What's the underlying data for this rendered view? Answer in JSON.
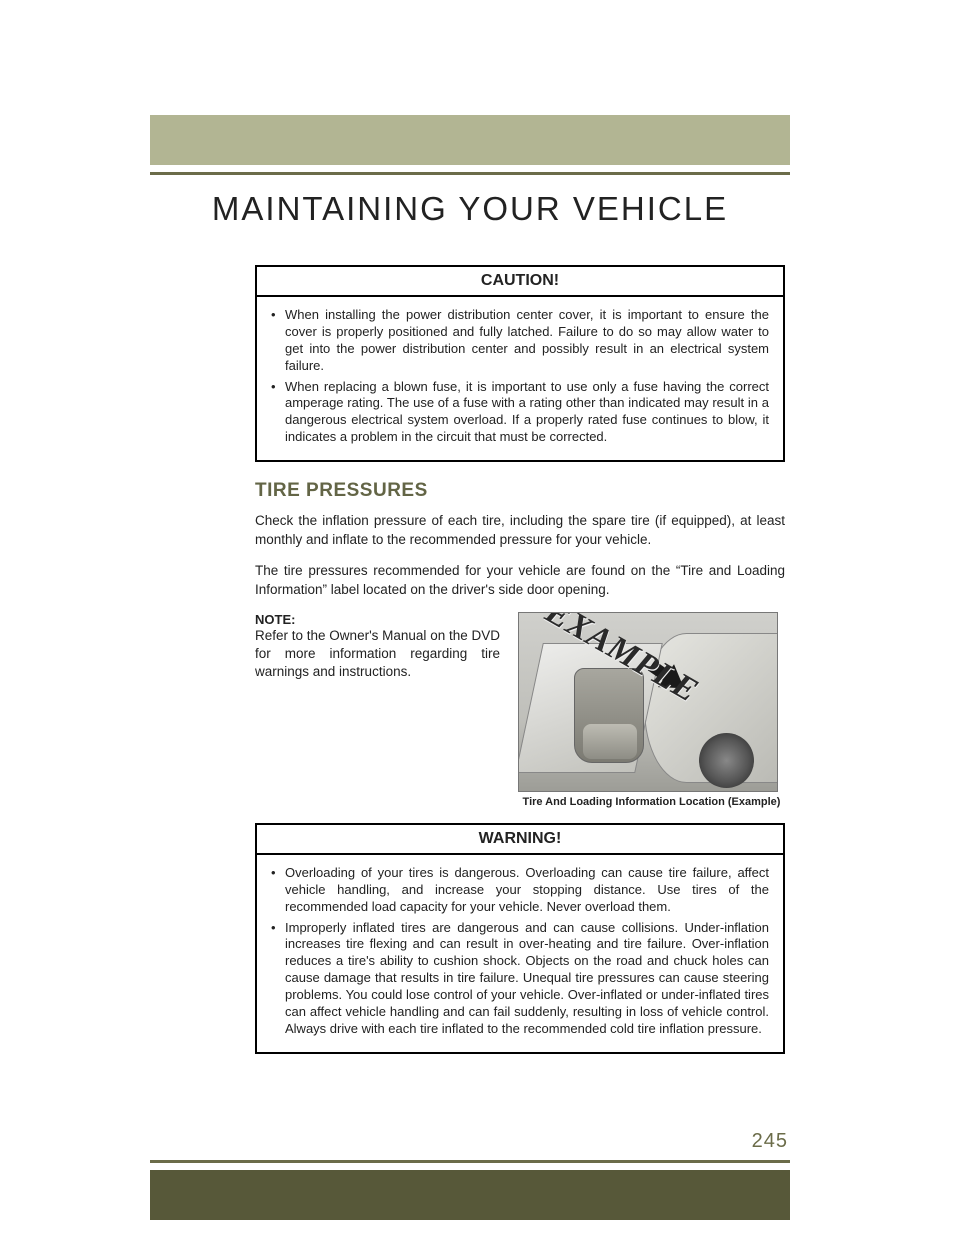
{
  "header": {
    "page_title": "MAINTAINING YOUR VEHICLE",
    "top_bar_color": "#b2b593",
    "rule_color": "#6b6c49",
    "bottom_bar_color": "#575839"
  },
  "caution_box": {
    "title": "CAUTION!",
    "items": [
      "When installing the power distribution center cover, it is important to ensure the cover is properly positioned and fully latched. Failure to do so may allow water to get into the power distribution center and possibly result in an electrical system failure.",
      "When replacing a blown fuse, it is important to use only a fuse having the correct amperage rating. The use of a fuse with a rating other than indicated may result in a dangerous electrical system overload. If a properly rated fuse continues to blow, it indicates a problem in the circuit that must be corrected."
    ]
  },
  "section": {
    "title": "TIRE PRESSURES",
    "title_color": "#636546",
    "para1": "Check the inflation pressure of each tire, including the spare tire (if equipped), at least monthly and inflate to the recommended pressure for your vehicle.",
    "para2": "The tire pressures recommended for your vehicle are found on the “Tire and Loading Information” label located on the driver's side door opening."
  },
  "note": {
    "label": "NOTE:",
    "body": "Refer to the Owner's Manual on the DVD for more information regarding tire warnings and instructions."
  },
  "figure": {
    "stamp_text": "EXAMPLE",
    "caption": "Tire And Loading Information Location (Example)"
  },
  "warning_box": {
    "title": "WARNING!",
    "items": [
      "Overloading of your tires is dangerous. Overloading can cause tire failure, affect vehicle handling, and increase your stopping distance. Use tires of the recommended load capacity for your vehicle. Never overload them.",
      "Improperly inflated tires are dangerous and can cause collisions. Under-inflation increases tire flexing and can result in over-heating and tire failure. Over-inflation reduces a tire's ability to cushion shock. Objects on the road and chuck holes can cause damage that results in tire failure. Unequal tire pressures can cause steering problems. You could lose control of your vehicle. Over-inflated or under-inflated tires can affect vehicle handling and can fail suddenly, resulting in loss of vehicle control. Always drive with each tire inflated to the recommended cold tire inflation pressure."
    ]
  },
  "page_number": "245"
}
